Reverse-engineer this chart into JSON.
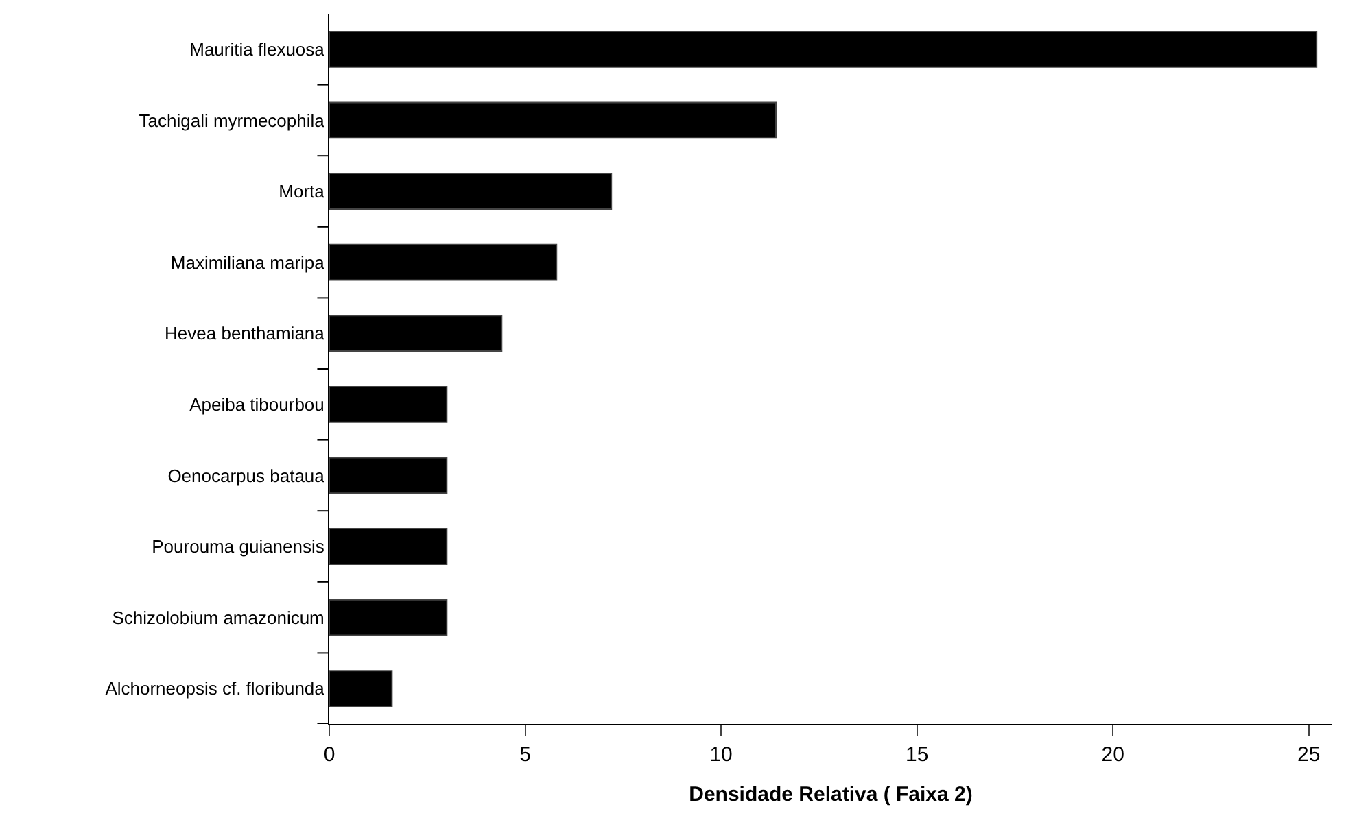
{
  "chart_data": {
    "type": "bar",
    "orientation": "horizontal",
    "xlabel": "Densidade Relativa ( Faixa 2)",
    "categories": [
      "Mauritia flexuosa",
      "Tachigali myrmecophila",
      "Morta",
      "Maximiliana maripa",
      "Hevea benthamiana",
      "Apeiba tibourbou",
      "Oenocarpus bataua",
      "Pourouma guianensis",
      "Schizolobium amazonicum",
      "Alchorneopsis cf. floribunda"
    ],
    "values": [
      25.2,
      11.4,
      7.2,
      5.8,
      4.4,
      3.0,
      3.0,
      3.0,
      3.0,
      1.6
    ],
    "color": "#000000",
    "xlim": [
      0,
      25.6
    ],
    "xticks": [
      0,
      5,
      10,
      15,
      20,
      25
    ]
  }
}
